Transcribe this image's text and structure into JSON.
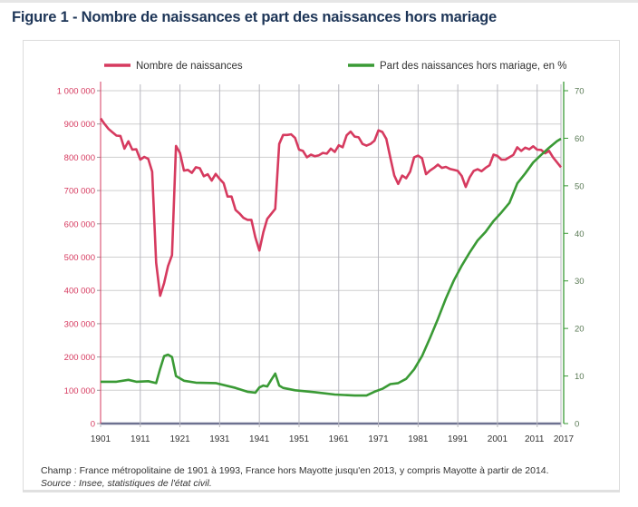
{
  "title": "Figure 1 - Nombre de naissances et part des naissances hors mariage",
  "footnote": "Champ : France métropolitaine de 1901 à 1993, France hors Mayotte jusqu'en 2013, y compris Mayotte à partir de 2014.",
  "source": "Source : Insee, statistiques de l'état civil.",
  "chart_data": {
    "type": "line",
    "title": "Figure 1 - Nombre de naissances et part des naissances hors mariage",
    "legend_position": "top",
    "grid": true,
    "x_ticks": [
      "1901",
      "1911",
      "1921",
      "1931",
      "1941",
      "1951",
      "1961",
      "1971",
      "1981",
      "1991",
      "2001",
      "2011",
      "2017"
    ],
    "xlim": [
      1901,
      2017
    ],
    "y_left": {
      "ylim": [
        0,
        1000000
      ],
      "ticks": [
        "0",
        "100 000",
        "200 000",
        "300 000",
        "400 000",
        "500 000",
        "600 000",
        "700 000",
        "800 000",
        "900 000",
        "1 000 000"
      ],
      "color": "#d63a5f"
    },
    "y_right": {
      "ylim": [
        0,
        70
      ],
      "ticks": [
        "0",
        "10",
        "20",
        "30",
        "40",
        "50",
        "60",
        "70"
      ],
      "color": "#3a9a35"
    },
    "series": [
      {
        "name": "Nombre de naissances",
        "axis": "left",
        "color": "#d63a5f",
        "x": [
          1901,
          1902,
          1903,
          1904,
          1905,
          1906,
          1907,
          1908,
          1909,
          1910,
          1911,
          1912,
          1913,
          1914,
          1915,
          1916,
          1917,
          1918,
          1919,
          1920,
          1921,
          1922,
          1923,
          1924,
          1925,
          1926,
          1927,
          1928,
          1929,
          1930,
          1931,
          1932,
          1933,
          1934,
          1935,
          1936,
          1937,
          1938,
          1939,
          1940,
          1941,
          1942,
          1943,
          1944,
          1945,
          1946,
          1947,
          1948,
          1949,
          1950,
          1951,
          1952,
          1953,
          1954,
          1955,
          1956,
          1957,
          1958,
          1959,
          1960,
          1961,
          1962,
          1963,
          1964,
          1965,
          1966,
          1967,
          1968,
          1969,
          1970,
          1971,
          1972,
          1973,
          1974,
          1975,
          1976,
          1977,
          1978,
          1979,
          1980,
          1981,
          1982,
          1983,
          1984,
          1985,
          1986,
          1987,
          1988,
          1989,
          1990,
          1991,
          1992,
          1993,
          1994,
          1995,
          1996,
          1997,
          1998,
          1999,
          2000,
          2001,
          2002,
          2003,
          2004,
          2005,
          2006,
          2007,
          2008,
          2009,
          2010,
          2011,
          2012,
          2013,
          2014,
          2015,
          2016,
          2017
        ],
        "y": [
          917000,
          900000,
          885000,
          875000,
          865000,
          864000,
          826000,
          848000,
          823000,
          824000,
          793000,
          801000,
          795000,
          757000,
          483000,
          384000,
          422000,
          473000,
          506000,
          834000,
          813000,
          760000,
          762000,
          753000,
          770000,
          767000,
          743000,
          749000,
          730000,
          750000,
          735000,
          722000,
          682000,
          682000,
          642000,
          631000,
          618000,
          612000,
          612000,
          559000,
          520000,
          575000,
          615000,
          630000,
          645000,
          840000,
          867000,
          867000,
          869000,
          858000,
          823000,
          819000,
          800000,
          808000,
          803000,
          806000,
          813000,
          811000,
          826000,
          816000,
          836000,
          830000,
          866000,
          877000,
          862000,
          860000,
          840000,
          835000,
          840000,
          850000,
          881000,
          876000,
          855000,
          799000,
          745000,
          720000,
          745000,
          737000,
          757000,
          800000,
          805000,
          797000,
          749000,
          760000,
          768000,
          778000,
          768000,
          771000,
          765000,
          762000,
          759000,
          744000,
          711000,
          740000,
          759000,
          764000,
          758000,
          768000,
          776000,
          808000,
          804000,
          793000,
          793000,
          800000,
          807000,
          830000,
          819000,
          829000,
          824000,
          833000,
          823000,
          822000,
          812000,
          819000,
          800000,
          785000,
          770000
        ]
      },
      {
        "name": "Part des naissances hors mariage, en %",
        "axis": "right",
        "color": "#3a9a35",
        "x": [
          1901,
          1905,
          1908,
          1910,
          1913,
          1915,
          1916,
          1917,
          1918,
          1919,
          1920,
          1922,
          1925,
          1930,
          1935,
          1938,
          1940,
          1941,
          1942,
          1943,
          1944,
          1945,
          1946,
          1947,
          1950,
          1955,
          1960,
          1965,
          1968,
          1970,
          1972,
          1974,
          1976,
          1978,
          1980,
          1982,
          1984,
          1986,
          1988,
          1990,
          1992,
          1994,
          1996,
          1998,
          2000,
          2002,
          2004,
          2006,
          2008,
          2010,
          2012,
          2014,
          2016,
          2017
        ],
        "y": [
          8.8,
          8.8,
          9.2,
          8.8,
          8.9,
          8.5,
          11.5,
          14.2,
          14.5,
          14.0,
          10.0,
          9.0,
          8.6,
          8.5,
          7.5,
          6.7,
          6.5,
          7.6,
          8.0,
          7.8,
          9.2,
          10.5,
          8.0,
          7.5,
          7.0,
          6.6,
          6.1,
          5.9,
          5.9,
          6.7,
          7.3,
          8.3,
          8.5,
          9.4,
          11.4,
          14.2,
          18.0,
          22.0,
          26.3,
          30.1,
          33.2,
          36.0,
          38.5,
          40.3,
          42.6,
          44.4,
          46.4,
          50.5,
          52.6,
          54.9,
          56.5,
          58.0,
          59.4,
          59.9
        ]
      }
    ]
  }
}
